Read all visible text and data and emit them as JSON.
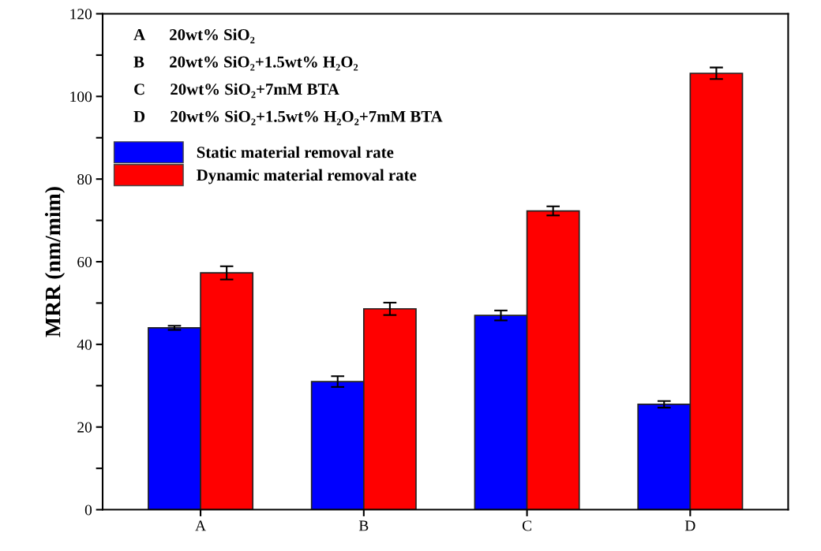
{
  "chart_data": {
    "type": "bar",
    "ylabel": "MRR (nm/mim)",
    "categories": [
      "A",
      "B",
      "C",
      "D"
    ],
    "series": [
      {
        "name": "Static material removal rate",
        "color": "#0000ff",
        "values": [
          44,
          31,
          47,
          25.5
        ],
        "errors": [
          0.5,
          1.3,
          1.2,
          0.8
        ]
      },
      {
        "name": "Dynamic material removal rate",
        "color": "#ff0000",
        "values": [
          57.3,
          48.6,
          72.3,
          105.6
        ],
        "errors": [
          1.6,
          1.5,
          1.1,
          1.4
        ]
      }
    ],
    "annotations": [
      "A      20wt% SiO₂",
      "B      20wt% SiO₂+1.5wt% H₂O₂",
      "C      20wt% SiO₂+7mM BTA",
      "D      20wt% SiO₂+1.5wt% H₂O₂+7mM BTA"
    ],
    "ylim": [
      0,
      120
    ],
    "yticks": [
      0,
      {
        "value": 10,
        "label": null
      },
      20,
      {
        "value": 30,
        "label": null
      },
      40,
      {
        "value": 50,
        "label": null
      },
      60,
      {
        "value": 70,
        "label": null
      },
      80,
      {
        "value": 90,
        "label": null
      },
      100,
      {
        "value": 110,
        "label": null
      },
      120
    ],
    "grid": false,
    "legend": "top left"
  }
}
